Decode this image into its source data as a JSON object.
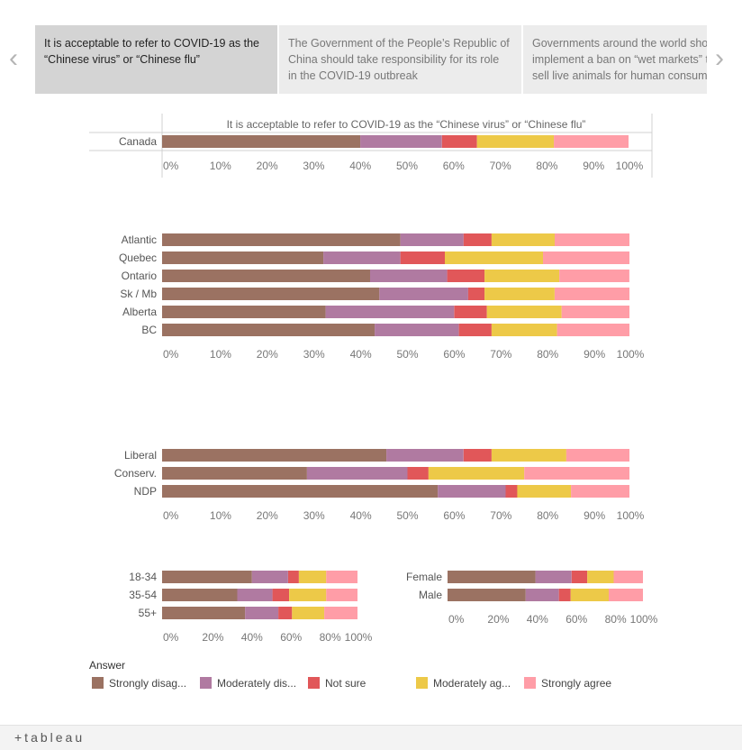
{
  "tabs": [
    {
      "lines": [
        "It is acceptable to refer to COVID-19 as the",
        "“Chinese virus” or “Chinese flu”"
      ]
    },
    {
      "lines": [
        "The Government of the People’s Republic of",
        "China should take responsibility for its role",
        "in the COVID-19 outbreak"
      ]
    },
    {
      "lines": [
        "Governments around the world should",
        "implement a ban on “wet markets” that",
        "sell live animals for human consumption"
      ]
    }
  ],
  "nav": {
    "prev_icon": "chevron-left-icon",
    "next_icon": "chevron-right-icon"
  },
  "colors": {
    "Strongly disagree": "#9b7262",
    "Moderately disagree": "#b07aa1",
    "Not sure": "#e15759",
    "Moderately agree": "#edc948",
    "Strongly agree": "#ff9da7"
  },
  "legend": {
    "title": "Answer",
    "items": [
      {
        "key": "Strongly disagree",
        "label": "Strongly disag..."
      },
      {
        "key": "Moderately disagree",
        "label": "Moderately dis..."
      },
      {
        "key": "Not sure",
        "label": "Not sure"
      },
      {
        "key": "Moderately agree",
        "label": "Moderately ag..."
      },
      {
        "key": "Strongly agree",
        "label": "Strongly agree"
      }
    ]
  },
  "chart_data": [
    {
      "type": "bar",
      "stacked": "percent",
      "title": "It is acceptable to refer to COVID-19 as the “Chinese virus” or “Chinese flu”",
      "categories": [
        "Canada"
      ],
      "series": [
        {
          "name": "Strongly disagree",
          "values": [
            42.5
          ]
        },
        {
          "name": "Moderately disagree",
          "values": [
            17.5
          ]
        },
        {
          "name": "Not sure",
          "values": [
            7.5
          ]
        },
        {
          "name": "Moderately agree",
          "values": [
            16.5
          ]
        },
        {
          "name": "Strongly agree",
          "values": [
            16
          ]
        }
      ],
      "xlim": [
        0,
        100
      ],
      "x_ticks": [
        "0%",
        "10%",
        "20%",
        "30%",
        "40%",
        "50%",
        "60%",
        "70%",
        "80%",
        "90%",
        "100%"
      ]
    },
    {
      "type": "bar",
      "stacked": "percent",
      "categories": [
        "Atlantic",
        "Quebec",
        "Ontario",
        "Sk / Mb",
        "Alberta",
        "BC"
      ],
      "series": [
        {
          "name": "Strongly disagree",
          "values": [
            51,
            34.5,
            44.5,
            46.5,
            35,
            45.5
          ]
        },
        {
          "name": "Moderately disagree",
          "values": [
            13.5,
            16.5,
            16.5,
            19,
            27.5,
            18
          ]
        },
        {
          "name": "Not sure",
          "values": [
            6,
            9.5,
            8,
            3.5,
            7,
            7
          ]
        },
        {
          "name": "Moderately agree",
          "values": [
            13.5,
            21,
            16,
            15,
            16,
            14
          ]
        },
        {
          "name": "Strongly agree",
          "values": [
            16,
            18.5,
            15,
            16,
            14.5,
            15.5
          ]
        }
      ],
      "xlim": [
        0,
        100
      ],
      "x_ticks": [
        "0%",
        "10%",
        "20%",
        "30%",
        "40%",
        "50%",
        "60%",
        "70%",
        "80%",
        "90%",
        "100%"
      ]
    },
    {
      "type": "bar",
      "stacked": "percent",
      "categories": [
        "Liberal",
        "Conserv.",
        "NDP"
      ],
      "series": [
        {
          "name": "Strongly disagree",
          "values": [
            48,
            31,
            59
          ]
        },
        {
          "name": "Moderately disagree",
          "values": [
            16.5,
            21.5,
            14.5
          ]
        },
        {
          "name": "Not sure",
          "values": [
            6,
            4.5,
            2.5
          ]
        },
        {
          "name": "Moderately agree",
          "values": [
            16,
            20.5,
            11.5
          ]
        },
        {
          "name": "Strongly agree",
          "values": [
            13.5,
            22.5,
            12.5
          ]
        }
      ],
      "xlim": [
        0,
        100
      ],
      "x_ticks": [
        "0%",
        "10%",
        "20%",
        "30%",
        "40%",
        "50%",
        "60%",
        "70%",
        "80%",
        "90%",
        "100%"
      ]
    },
    {
      "type": "bar",
      "stacked": "percent",
      "categories": [
        "18-34",
        "35-54",
        "55+"
      ],
      "series": [
        {
          "name": "Strongly disagree",
          "values": [
            46,
            38.5,
            42.5
          ]
        },
        {
          "name": "Moderately disagree",
          "values": [
            18.5,
            18,
            17
          ]
        },
        {
          "name": "Not sure",
          "values": [
            5.5,
            8.5,
            7
          ]
        },
        {
          "name": "Moderately agree",
          "values": [
            14,
            19,
            16.5
          ]
        },
        {
          "name": "Strongly agree",
          "values": [
            16,
            16,
            17
          ]
        }
      ],
      "xlim": [
        0,
        100
      ],
      "x_ticks": [
        "0%",
        "20%",
        "40%",
        "60%",
        "80%",
        "100%"
      ]
    },
    {
      "type": "bar",
      "stacked": "percent",
      "categories": [
        "Female",
        "Male"
      ],
      "series": [
        {
          "name": "Strongly disagree",
          "values": [
            45,
            40
          ]
        },
        {
          "name": "Moderately disagree",
          "values": [
            18.5,
            17
          ]
        },
        {
          "name": "Not sure",
          "values": [
            8,
            6
          ]
        },
        {
          "name": "Moderately agree",
          "values": [
            13.5,
            19.5
          ]
        },
        {
          "name": "Strongly agree",
          "values": [
            15,
            17.5
          ]
        }
      ],
      "xlim": [
        0,
        100
      ],
      "x_ticks": [
        "0%",
        "20%",
        "40%",
        "60%",
        "80%",
        "100%"
      ]
    }
  ],
  "footer": {
    "brand": "+tableau"
  }
}
